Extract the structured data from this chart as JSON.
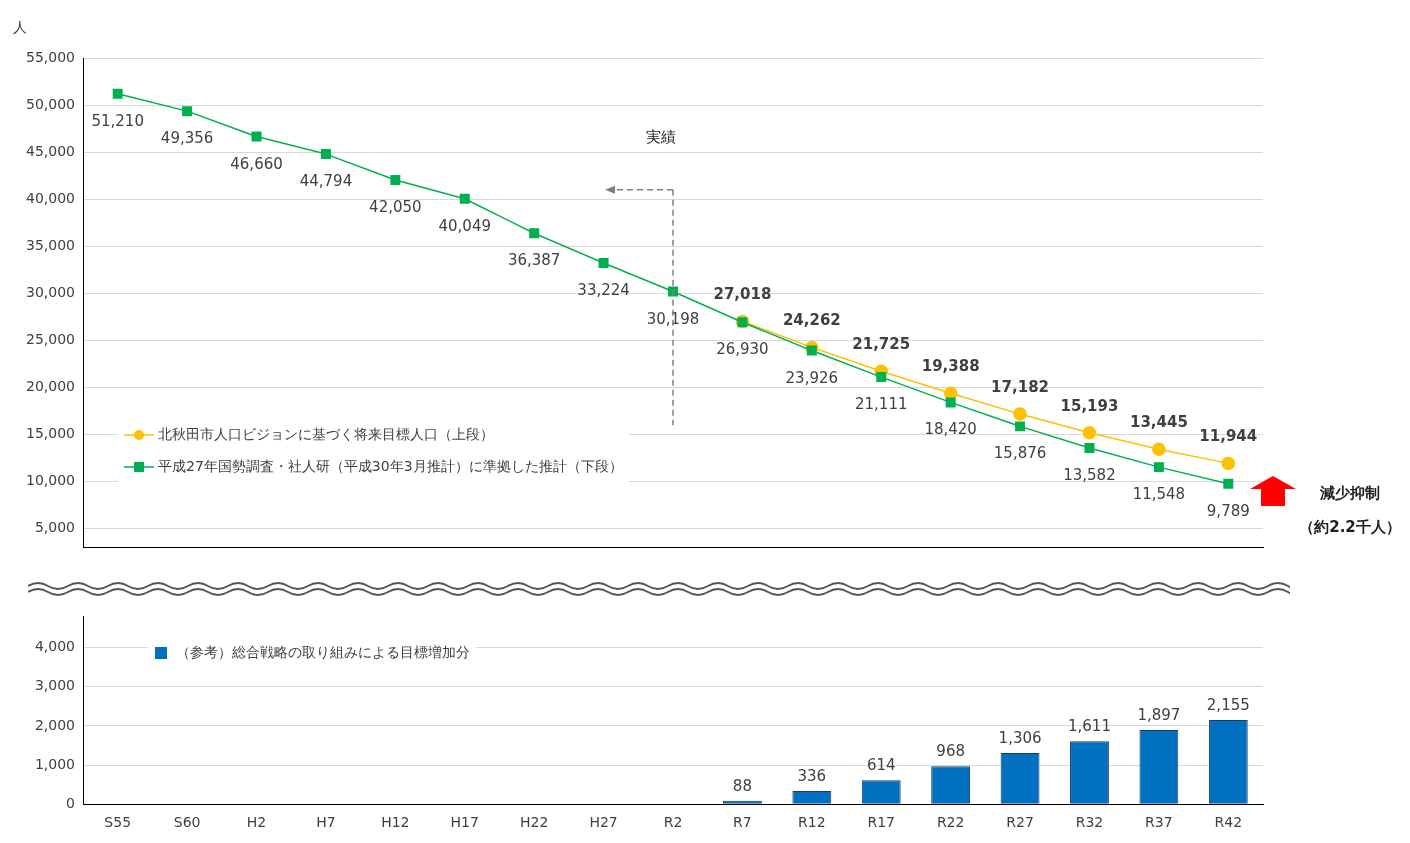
{
  "chart_data": [
    {
      "type": "line",
      "ylabel": "人",
      "categories": [
        "S55",
        "S60",
        "H2",
        "H7",
        "H12",
        "H17",
        "H22",
        "H27",
        "R2",
        "R7",
        "R12",
        "R17",
        "R22",
        "R27",
        "R32",
        "R37",
        "R42"
      ],
      "series": [
        {
          "name": "北秋田市人口ビジョンに基づく将来目標人口（上段）",
          "color": "#ffc000",
          "marker": "circle",
          "values": [
            null,
            null,
            null,
            null,
            null,
            null,
            null,
            null,
            null,
            27018,
            24262,
            21725,
            19388,
            17182,
            15193,
            13445,
            11944
          ],
          "value_labels": [
            null,
            null,
            null,
            null,
            null,
            null,
            null,
            null,
            null,
            "27,018",
            "24,262",
            "21,725",
            "19,388",
            "17,182",
            "15,193",
            "13,445",
            "11,944"
          ]
        },
        {
          "name": "平成27年国勢調査・社人研（平成30年3月推計）に準拠した推計（下段）",
          "color": "#00b050",
          "marker": "square",
          "values": [
            51210,
            49356,
            46660,
            44794,
            42050,
            40049,
            36387,
            33224,
            30198,
            26930,
            23926,
            21111,
            18420,
            15876,
            13582,
            11548,
            9789
          ],
          "value_labels": [
            "51,210",
            "49,356",
            "46,660",
            "44,794",
            "42,050",
            "40,049",
            "36,387",
            "33,224",
            "30,198",
            "26,930",
            "23,926",
            "21,111",
            "18,420",
            "15,876",
            "13,582",
            "11,548",
            "9,789"
          ]
        }
      ],
      "ylim": [
        3000,
        55000
      ],
      "yticks": [
        {
          "value": 5000,
          "label": "5,000"
        },
        {
          "value": 10000,
          "label": "10,000"
        },
        {
          "value": 15000,
          "label": "15,000"
        },
        {
          "value": 20000,
          "label": "20,000"
        },
        {
          "value": 25000,
          "label": "25,000"
        },
        {
          "value": 30000,
          "label": "30,000"
        },
        {
          "value": 35000,
          "label": "35,000"
        },
        {
          "value": 40000,
          "label": "40,000"
        },
        {
          "value": 45000,
          "label": "45,000"
        },
        {
          "value": 50000,
          "label": "50,000"
        },
        {
          "value": 55000,
          "label": "55,000"
        }
      ],
      "grid": "y",
      "legend": "bottom left",
      "tick_labels": "y",
      "ref_lines": [
        {
          "axis": "x",
          "value": "R2",
          "label": "実績",
          "color": "#808080",
          "line_style": "dashed"
        }
      ],
      "annotations": [
        "減少抑制",
        "（約2.2千人）"
      ]
    },
    {
      "type": "bar",
      "categories": [
        "S55",
        "S60",
        "H2",
        "H7",
        "H12",
        "H17",
        "H22",
        "H27",
        "R2",
        "R7",
        "R12",
        "R17",
        "R22",
        "R27",
        "R32",
        "R37",
        "R42"
      ],
      "series": [
        {
          "name": "（参考）総合戦略の取り組みによる目標増加分",
          "color": "#0070c0",
          "values": [
            null,
            null,
            null,
            null,
            null,
            null,
            null,
            null,
            null,
            88,
            336,
            614,
            968,
            1306,
            1611,
            1897,
            2155
          ],
          "value_labels": [
            null,
            null,
            null,
            null,
            null,
            null,
            null,
            null,
            null,
            "88",
            "336",
            "614",
            "968",
            "1,306",
            "1,611",
            "1,897",
            "2,155"
          ]
        }
      ],
      "ylim": [
        0,
        4800
      ],
      "yticks": [
        0,
        {
          "value": 1000,
          "label": "1,000"
        },
        {
          "value": 2000,
          "label": "2,000"
        },
        {
          "value": 3000,
          "label": "3,000"
        },
        {
          "value": 4000,
          "label": "4,000"
        }
      ],
      "grid": "y",
      "legend": "top left"
    }
  ]
}
